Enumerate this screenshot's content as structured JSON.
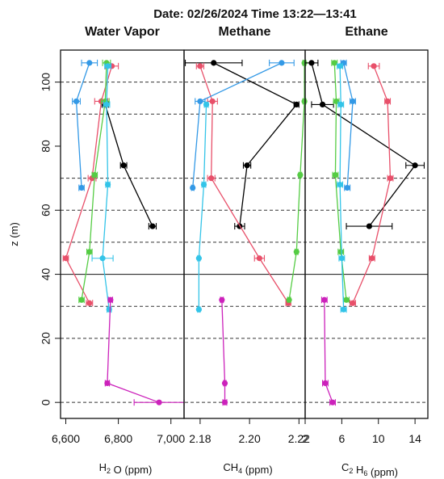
{
  "chart_data": {
    "type": "scatter",
    "title": "Date: 02/26/2024 Time 13:22—13:41",
    "ylabel": "z (m)",
    "ylim": [
      -5,
      110
    ],
    "yticks": [
      0,
      20,
      40,
      60,
      80,
      100
    ],
    "dashed_gridlines_y": [
      0,
      20,
      30,
      50,
      60,
      70,
      90,
      100
    ],
    "solid_gridlines_y": [
      40
    ],
    "panels": [
      {
        "title": "Water Vapor",
        "xlabel_main": "H",
        "xlabel_sub": "2",
        "xlabel_rest": " O (ppm)",
        "xlim": [
          6580,
          7050
        ],
        "xticks": [
          6600,
          6800,
          7000
        ],
        "xtick_labels": [
          "6,600",
          "6,800",
          "7,000"
        ],
        "series": [
          {
            "color": "#000000",
            "points": [
              [
                6750,
                93
              ],
              [
                6820,
                74
              ],
              [
                6930,
                55
              ]
            ],
            "err": [
              12,
              12,
              14
            ]
          },
          {
            "color": "#e8506a",
            "points": [
              [
                6775,
                105
              ],
              [
                6735,
                94
              ],
              [
                6700,
                70
              ],
              [
                6600,
                45
              ],
              [
                6690,
                31
              ]
            ],
            "err": [
              25,
              25,
              15,
              10,
              12
            ]
          },
          {
            "color": "#55cc44",
            "points": [
              [
                6755,
                106
              ],
              [
                6750,
                94
              ],
              [
                6710,
                71
              ],
              [
                6690,
                47
              ],
              [
                6660,
                32
              ]
            ],
            "err": [
              15,
              15,
              10,
              10,
              10
            ]
          },
          {
            "color": "#3399e6",
            "points": [
              [
                6690,
                106
              ],
              [
                6640,
                94
              ],
              [
                6660,
                67
              ]
            ],
            "err": [
              30,
              15,
              10
            ]
          },
          {
            "color": "#33c4e8",
            "points": [
              [
                6760,
                105
              ],
              [
                6755,
                93
              ],
              [
                6760,
                68
              ],
              [
                6740,
                45
              ],
              [
                6765,
                29
              ]
            ],
            "err": [
              12,
              12,
              8,
              40,
              8
            ]
          },
          {
            "color": "#cc22bb",
            "points": [
              [
                6770,
                32
              ],
              [
                6758,
                6
              ],
              [
                6955,
                0
              ]
            ],
            "err": [
              8,
              8,
              95
            ]
          }
        ]
      },
      {
        "title": "Methane",
        "xlabel_main": "CH",
        "xlabel_sub": "4",
        "xlabel_rest": "  (ppm)",
        "xlim": [
          2.1735,
          2.2225
        ],
        "xticks": [
          2.18,
          2.2,
          2.22
        ],
        "xtick_labels": [
          "2.18",
          "2.20",
          "2.22"
        ],
        "series": [
          {
            "color": "#000000",
            "points": [
              [
                2.1855,
                106
              ],
              [
                2.219,
                93
              ],
              [
                2.199,
                74
              ],
              [
                2.196,
                55
              ]
            ],
            "err": [
              0.0115,
              0.001,
              0.0015,
              0.002
            ]
          },
          {
            "color": "#e8506a",
            "points": [
              [
                2.18,
                105
              ],
              [
                2.185,
                94
              ],
              [
                2.1845,
                70
              ],
              [
                2.204,
                45
              ],
              [
                2.2157,
                31
              ]
            ],
            "err": [
              0.0015,
              0.002,
              0.0015,
              0.002,
              0.001
            ]
          },
          {
            "color": "#55cc44",
            "points": [
              [
                2.2222,
                106
              ],
              [
                2.2222,
                94
              ],
              [
                2.2205,
                71
              ],
              [
                2.219,
                47
              ],
              [
                2.216,
                32
              ]
            ],
            "err": [
              0.0006,
              0.0006,
              0.0006,
              0.0006,
              0.0006
            ]
          },
          {
            "color": "#3399e6",
            "points": [
              [
                2.213,
                106
              ],
              [
                2.18,
                94
              ],
              [
                2.177,
                67
              ]
            ],
            "err": [
              0.005,
              0.002,
              0.0005
            ]
          },
          {
            "color": "#33c4e8",
            "points": [
              [
                2.1825,
                93
              ],
              [
                2.1815,
                68
              ],
              [
                2.1795,
                45
              ],
              [
                2.1795,
                29
              ]
            ],
            "err": [
              0.0008,
              0.0008,
              0.0005,
              0.0005
            ]
          },
          {
            "color": "#cc22bb",
            "points": [
              [
                2.1888,
                32
              ],
              [
                2.19,
                6
              ],
              [
                2.19,
                0
              ]
            ],
            "err": [
              0.0006,
              0.0005,
              0.0008
            ]
          }
        ]
      },
      {
        "title": "Ethane",
        "xlabel_main": "C",
        "xlabel_sub": "2",
        "xlabel_rest": " H",
        "xlabel_sub2": "6",
        "xlabel_rest2": " (ppm)",
        "xlim": [
          2,
          15.4
        ],
        "xticks": [
          2,
          6,
          10,
          14
        ],
        "xtick_labels": [
          "2",
          "6",
          "10",
          "14"
        ],
        "series": [
          {
            "color": "#000000",
            "points": [
              [
                2.7,
                106
              ],
              [
                3.9,
                93
              ],
              [
                14.0,
                74
              ],
              [
                9.0,
                55
              ]
            ],
            "err": [
              0.7,
              1.2,
              1.0,
              2.5
            ]
          },
          {
            "color": "#e8506a",
            "points": [
              [
                9.5,
                105
              ],
              [
                11.0,
                94
              ],
              [
                11.3,
                70
              ],
              [
                9.3,
                45
              ],
              [
                7.2,
                31
              ]
            ],
            "err": [
              0.6,
              0.3,
              0.3,
              0.3,
              0.3
            ]
          },
          {
            "color": "#55cc44",
            "points": [
              [
                5.2,
                106
              ],
              [
                5.4,
                94
              ],
              [
                5.3,
                71
              ],
              [
                5.9,
                47
              ],
              [
                6.5,
                32
              ]
            ],
            "err": [
              0.3,
              0.3,
              0.3,
              0.3,
              0.3
            ]
          },
          {
            "color": "#3399e6",
            "points": [
              [
                6.2,
                106
              ],
              [
                7.2,
                94
              ],
              [
                6.6,
                67
              ]
            ],
            "err": [
              0.3,
              0.3,
              0.3
            ]
          },
          {
            "color": "#33c4e8",
            "points": [
              [
                5.8,
                105
              ],
              [
                5.9,
                93
              ],
              [
                5.8,
                68
              ],
              [
                6.0,
                45
              ],
              [
                6.2,
                29
              ]
            ],
            "err": [
              0.3,
              0.3,
              0.3,
              0.3,
              0.3
            ]
          },
          {
            "color": "#cc22bb",
            "points": [
              [
                4.1,
                32
              ],
              [
                4.2,
                6
              ],
              [
                5.0,
                0
              ]
            ],
            "err": [
              0.3,
              0.3,
              0.3
            ]
          }
        ]
      }
    ]
  }
}
